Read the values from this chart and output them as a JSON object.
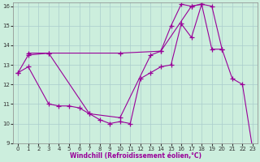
{
  "xlabel": "Windchill (Refroidissement éolien,°C)",
  "bg_color": "#cceedd",
  "grid_color": "#aacccc",
  "line_color": "#990099",
  "marker": "+",
  "markersize": 4,
  "linewidth": 0.8,
  "xlim": [
    -0.5,
    23.5
  ],
  "ylim": [
    9,
    16.2
  ],
  "xticks": [
    0,
    1,
    2,
    3,
    4,
    5,
    6,
    7,
    8,
    9,
    10,
    11,
    12,
    13,
    14,
    15,
    16,
    17,
    18,
    19,
    20,
    21,
    22,
    23
  ],
  "yticks": [
    9,
    10,
    11,
    12,
    13,
    14,
    15,
    16
  ],
  "series": [
    {
      "x": [
        0,
        1,
        3,
        7,
        10,
        13,
        14,
        15,
        16,
        17,
        18
      ],
      "y": [
        12.6,
        13.5,
        13.6,
        10.5,
        10.3,
        13.5,
        13.7,
        15.0,
        16.1,
        16.0,
        16.1
      ]
    },
    {
      "x": [
        1,
        3,
        10,
        14,
        17,
        18,
        19,
        20
      ],
      "y": [
        13.6,
        13.6,
        13.6,
        13.7,
        16.0,
        16.1,
        13.8,
        13.8
      ]
    },
    {
      "x": [
        0,
        1,
        3,
        4,
        5,
        6,
        7,
        8,
        9,
        10,
        11,
        12,
        13,
        14,
        15,
        16,
        17,
        18,
        19,
        20,
        21,
        22,
        23
      ],
      "y": [
        12.6,
        12.9,
        11.0,
        10.9,
        10.9,
        10.8,
        10.5,
        10.2,
        10.0,
        10.1,
        10.0,
        12.3,
        12.6,
        12.9,
        13.0,
        15.1,
        14.4,
        16.1,
        16.0,
        13.8,
        12.3,
        12.0,
        8.7
      ]
    }
  ]
}
